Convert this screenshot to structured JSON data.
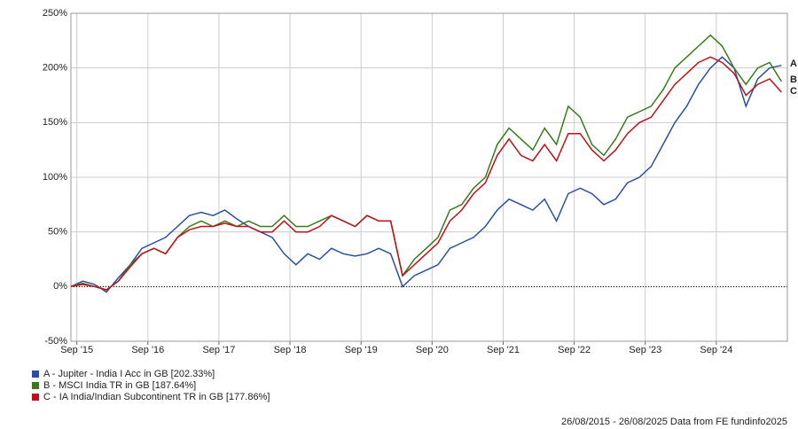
{
  "chart_data": {
    "type": "line",
    "x": [
      "2015-08",
      "2015-10",
      "2015-12",
      "2016-02",
      "2016-04",
      "2016-06",
      "2016-08",
      "2016-10",
      "2016-12",
      "2017-02",
      "2017-04",
      "2017-06",
      "2017-08",
      "2017-10",
      "2017-12",
      "2018-02",
      "2018-04",
      "2018-06",
      "2018-08",
      "2018-10",
      "2018-12",
      "2019-02",
      "2019-04",
      "2019-06",
      "2019-08",
      "2019-10",
      "2019-12",
      "2020-02",
      "2020-04",
      "2020-06",
      "2020-08",
      "2020-10",
      "2020-12",
      "2021-02",
      "2021-04",
      "2021-06",
      "2021-08",
      "2021-10",
      "2021-12",
      "2022-02",
      "2022-04",
      "2022-06",
      "2022-08",
      "2022-10",
      "2022-12",
      "2023-02",
      "2023-04",
      "2023-06",
      "2023-08",
      "2023-10",
      "2023-12",
      "2024-02",
      "2024-04",
      "2024-06",
      "2024-08",
      "2024-10",
      "2024-12",
      "2025-02",
      "2025-04",
      "2025-06",
      "2025-08"
    ],
    "series": [
      {
        "name": "A - Jupiter - India I Acc in GB [202.33%]",
        "label": "A",
        "color": "#2a4fa0",
        "values": [
          0,
          5,
          2,
          -5,
          8,
          20,
          35,
          40,
          45,
          55,
          65,
          68,
          65,
          70,
          62,
          55,
          50,
          45,
          30,
          20,
          30,
          25,
          35,
          30,
          28,
          30,
          35,
          30,
          0,
          10,
          15,
          20,
          35,
          40,
          45,
          55,
          70,
          80,
          75,
          70,
          80,
          60,
          85,
          90,
          85,
          75,
          80,
          95,
          100,
          110,
          130,
          150,
          165,
          185,
          200,
          210,
          200,
          165,
          190,
          200,
          202.33
        ]
      },
      {
        "name": "B - MSCI India TR in GB [187.64%]",
        "label": "B",
        "color": "#3a7a1a",
        "values": [
          0,
          3,
          0,
          -3,
          5,
          20,
          30,
          35,
          30,
          45,
          55,
          60,
          55,
          60,
          55,
          60,
          55,
          55,
          65,
          55,
          55,
          60,
          65,
          60,
          55,
          65,
          60,
          60,
          10,
          25,
          35,
          45,
          70,
          75,
          90,
          100,
          130,
          145,
          135,
          125,
          145,
          130,
          165,
          155,
          130,
          120,
          135,
          155,
          160,
          165,
          180,
          200,
          210,
          220,
          230,
          220,
          200,
          185,
          200,
          205,
          187.64
        ]
      },
      {
        "name": "C - IA India/Indian Subcontinent TR in GB [177.86%]",
        "label": "C",
        "color": "#c0111a",
        "values": [
          0,
          2,
          0,
          -3,
          5,
          18,
          30,
          35,
          30,
          45,
          52,
          55,
          55,
          58,
          55,
          55,
          50,
          50,
          60,
          50,
          50,
          55,
          65,
          60,
          55,
          65,
          60,
          60,
          10,
          20,
          30,
          40,
          60,
          70,
          85,
          95,
          120,
          135,
          120,
          115,
          130,
          115,
          140,
          140,
          125,
          115,
          125,
          140,
          150,
          155,
          170,
          185,
          195,
          205,
          210,
          205,
          195,
          175,
          185,
          190,
          177.86
        ]
      }
    ],
    "xlim": [
      "2015-08",
      "2025-09"
    ],
    "xticks": [
      {
        "value": "2015-09",
        "label": "Sep '15"
      },
      {
        "value": "2016-09",
        "label": "Sep '16"
      },
      {
        "value": "2017-09",
        "label": "Sep '17"
      },
      {
        "value": "2018-09",
        "label": "Sep '18"
      },
      {
        "value": "2019-09",
        "label": "Sep '19"
      },
      {
        "value": "2020-09",
        "label": "Sep '20"
      },
      {
        "value": "2021-09",
        "label": "Sep '21"
      },
      {
        "value": "2022-09",
        "label": "Sep '22"
      },
      {
        "value": "2023-09",
        "label": "Sep '23"
      },
      {
        "value": "2024-09",
        "label": "Sep '24"
      }
    ],
    "ylim": [
      -50,
      250
    ],
    "yticks": [
      {
        "value": -50,
        "label": "-50%"
      },
      {
        "value": 0,
        "label": "0%"
      },
      {
        "value": 50,
        "label": "50%"
      },
      {
        "value": 100,
        "label": "100%"
      },
      {
        "value": 150,
        "label": "150%"
      },
      {
        "value": 200,
        "label": "200%"
      },
      {
        "value": 250,
        "label": "250%"
      }
    ],
    "grid": true,
    "source": "26/08/2015 - 26/08/2025 Data from FE fundinfo2025"
  }
}
